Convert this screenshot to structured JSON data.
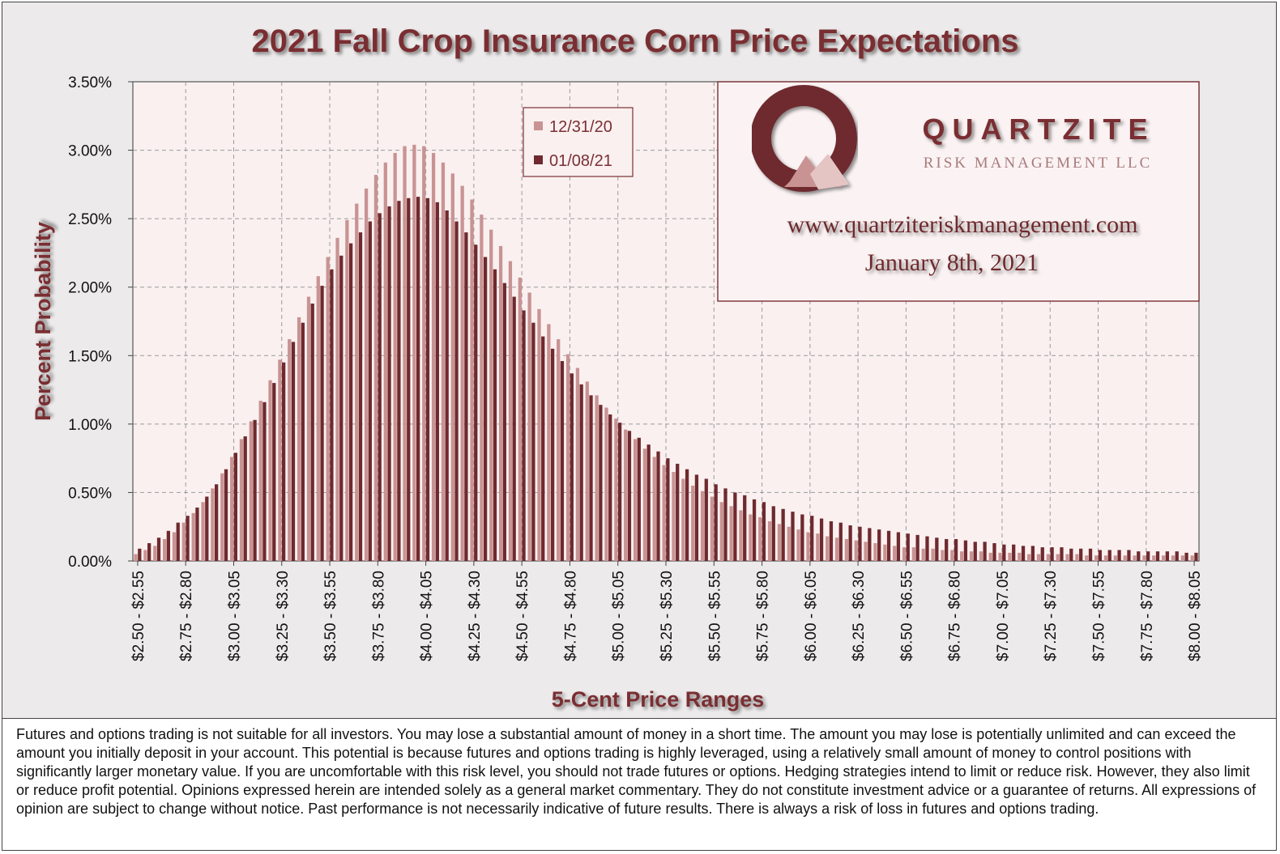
{
  "chart_data": {
    "type": "bar",
    "title": "2021 Fall Crop Insurance Corn Price Expectations",
    "xlabel": "5-Cent Price Ranges",
    "ylabel": "Percent Probability",
    "ylim": [
      0,
      3.5
    ],
    "yticks": [
      "0.00%",
      "0.50%",
      "1.00%",
      "1.50%",
      "2.00%",
      "2.50%",
      "3.00%",
      "3.50%"
    ],
    "xtick_labels": [
      "$2.50 - $2.55",
      "$2.75 - $2.80",
      "$3.00 - $3.05",
      "$3.25 - $3.30",
      "$3.50 - $3.55",
      "$3.75 - $3.80",
      "$4.00 - $4.05",
      "$4.25 - $4.30",
      "$4.50 - $4.55",
      "$4.75 - $4.80",
      "$5.00 - $5.05",
      "$5.25 - $5.30",
      "$5.50 - $5.55",
      "$5.75 - $5.80",
      "$6.00 - $6.05",
      "$6.25 - $6.30",
      "$6.50 - $6.55",
      "$6.75 - $6.80",
      "$7.00 - $7.05",
      "$7.25 - $7.30",
      "$7.50 - $7.55",
      "$7.75 - $7.80",
      "$8.00 - $8.05"
    ],
    "categories": [
      "$2.50 - $2.55",
      "$2.55 - $2.60",
      "$2.60 - $2.65",
      "$2.65 - $2.70",
      "$2.70 - $2.75",
      "$2.75 - $2.80",
      "$2.80 - $2.85",
      "$2.85 - $2.90",
      "$2.90 - $2.95",
      "$2.95 - $3.00",
      "$3.00 - $3.05",
      "$3.05 - $3.10",
      "$3.10 - $3.15",
      "$3.15 - $3.20",
      "$3.20 - $3.25",
      "$3.25 - $3.30",
      "$3.30 - $3.35",
      "$3.35 - $3.40",
      "$3.40 - $3.45",
      "$3.45 - $3.50",
      "$3.50 - $3.55",
      "$3.55 - $3.60",
      "$3.60 - $3.65",
      "$3.65 - $3.70",
      "$3.70 - $3.75",
      "$3.75 - $3.80",
      "$3.80 - $3.85",
      "$3.85 - $3.90",
      "$3.90 - $3.95",
      "$3.95 - $4.00",
      "$4.00 - $4.05",
      "$4.05 - $4.10",
      "$4.10 - $4.15",
      "$4.15 - $4.20",
      "$4.20 - $4.25",
      "$4.25 - $4.30",
      "$4.30 - $4.35",
      "$4.35 - $4.40",
      "$4.40 - $4.45",
      "$4.45 - $4.50",
      "$4.50 - $4.55",
      "$4.55 - $4.60",
      "$4.60 - $4.65",
      "$4.65 - $4.70",
      "$4.70 - $4.75",
      "$4.75 - $4.80",
      "$4.80 - $4.85",
      "$4.85 - $4.90",
      "$4.90 - $4.95",
      "$4.95 - $5.00",
      "$5.00 - $5.05",
      "$5.05 - $5.10",
      "$5.10 - $5.15",
      "$5.15 - $5.20",
      "$5.20 - $5.25",
      "$5.25 - $5.30",
      "$5.30 - $5.35",
      "$5.35 - $5.40",
      "$5.40 - $5.45",
      "$5.45 - $5.50",
      "$5.50 - $5.55",
      "$5.55 - $5.60",
      "$5.60 - $5.65",
      "$5.65 - $5.70",
      "$5.70 - $5.75",
      "$5.75 - $5.80",
      "$5.80 - $5.85",
      "$5.85 - $5.90",
      "$5.90 - $5.95",
      "$5.95 - $6.00",
      "$6.00 - $6.05",
      "$6.05 - $6.10",
      "$6.10 - $6.15",
      "$6.15 - $6.20",
      "$6.20 - $6.25",
      "$6.25 - $6.30",
      "$6.30 - $6.35",
      "$6.35 - $6.40",
      "$6.40 - $6.45",
      "$6.45 - $6.50",
      "$6.50 - $6.55",
      "$6.55 - $6.60",
      "$6.60 - $6.65",
      "$6.65 - $6.70",
      "$6.70 - $6.75",
      "$6.75 - $6.80",
      "$6.80 - $6.85",
      "$6.85 - $6.90",
      "$6.90 - $6.95",
      "$6.95 - $7.00",
      "$7.00 - $7.05",
      "$7.05 - $7.10",
      "$7.10 - $7.15",
      "$7.15 - $7.20",
      "$7.20 - $7.25",
      "$7.25 - $7.30",
      "$7.30 - $7.35",
      "$7.35 - $7.40",
      "$7.40 - $7.45",
      "$7.45 - $7.50",
      "$7.50 - $7.55",
      "$7.55 - $7.60",
      "$7.60 - $7.65",
      "$7.65 - $7.70",
      "$7.70 - $7.75",
      "$7.75 - $7.80",
      "$7.80 - $7.85",
      "$7.85 - $7.90",
      "$7.90 - $7.95",
      "$7.95 - $8.00",
      "$8.00 - $8.05"
    ],
    "series": [
      {
        "name": "12/31/20",
        "color": "#c99393",
        "values": [
          0.05,
          0.08,
          0.11,
          0.16,
          0.21,
          0.28,
          0.35,
          0.43,
          0.53,
          0.64,
          0.76,
          0.89,
          1.02,
          1.17,
          1.32,
          1.47,
          1.62,
          1.78,
          1.93,
          2.08,
          2.22,
          2.36,
          2.49,
          2.61,
          2.72,
          2.82,
          2.91,
          2.98,
          3.03,
          3.04,
          3.03,
          2.98,
          2.91,
          2.83,
          2.74,
          2.64,
          2.53,
          2.42,
          2.3,
          2.19,
          2.07,
          1.96,
          1.84,
          1.73,
          1.62,
          1.51,
          1.41,
          1.31,
          1.21,
          1.12,
          1.04,
          0.96,
          0.89,
          0.82,
          0.76,
          0.7,
          0.65,
          0.6,
          0.55,
          0.51,
          0.47,
          0.43,
          0.4,
          0.37,
          0.34,
          0.32,
          0.29,
          0.27,
          0.25,
          0.23,
          0.21,
          0.2,
          0.18,
          0.17,
          0.16,
          0.15,
          0.14,
          0.13,
          0.12,
          0.11,
          0.1,
          0.1,
          0.09,
          0.09,
          0.08,
          0.08,
          0.07,
          0.07,
          0.07,
          0.06,
          0.06,
          0.06,
          0.06,
          0.05,
          0.05,
          0.05,
          0.05,
          0.05,
          0.05,
          0.04,
          0.04,
          0.04,
          0.04,
          0.04,
          0.04,
          0.04,
          0.04,
          0.04,
          0.04,
          0.04,
          0.04
        ]
      },
      {
        "name": "01/08/21",
        "color": "#6e2a2e",
        "values": [
          0.09,
          0.13,
          0.17,
          0.22,
          0.28,
          0.33,
          0.39,
          0.47,
          0.56,
          0.67,
          0.79,
          0.91,
          1.03,
          1.16,
          1.3,
          1.45,
          1.6,
          1.74,
          1.88,
          2.01,
          2.13,
          2.23,
          2.32,
          2.4,
          2.48,
          2.54,
          2.59,
          2.63,
          2.65,
          2.66,
          2.65,
          2.62,
          2.56,
          2.48,
          2.4,
          2.31,
          2.22,
          2.13,
          2.03,
          1.93,
          1.83,
          1.74,
          1.64,
          1.55,
          1.46,
          1.37,
          1.29,
          1.21,
          1.14,
          1.07,
          1.01,
          0.95,
          0.9,
          0.85,
          0.8,
          0.75,
          0.71,
          0.67,
          0.63,
          0.6,
          0.56,
          0.53,
          0.5,
          0.48,
          0.45,
          0.43,
          0.4,
          0.38,
          0.36,
          0.34,
          0.33,
          0.31,
          0.29,
          0.28,
          0.26,
          0.25,
          0.24,
          0.23,
          0.22,
          0.21,
          0.2,
          0.19,
          0.18,
          0.17,
          0.16,
          0.16,
          0.15,
          0.14,
          0.14,
          0.13,
          0.12,
          0.12,
          0.11,
          0.11,
          0.1,
          0.1,
          0.1,
          0.09,
          0.09,
          0.09,
          0.08,
          0.08,
          0.08,
          0.08,
          0.07,
          0.07,
          0.07,
          0.07,
          0.07,
          0.06,
          0.06
        ]
      }
    ]
  },
  "legend": {
    "items": [
      {
        "label": "12/31/20",
        "color": "#c99393"
      },
      {
        "label": "01/08/21",
        "color": "#6e2a2e"
      }
    ]
  },
  "brand": {
    "name": "QUARTZITE",
    "subtitle": "RISK MANAGEMENT LLC",
    "website": "www.quartziteriskmanagement.com",
    "date": "January 8th, 2021",
    "logo_icon": "quartzite-q-logo-icon",
    "brand_color": "#6e2a2e"
  },
  "disclaimer": {
    "text": "Futures and options trading is not suitable for all investors. You may lose a substantial amount of money in a short time. The amount you may lose is potentially unlimited and can exceed the amount you initially deposit in your account. This potential is because futures and options trading is highly leveraged, using a relatively small amount of money to control positions with significantly larger monetary value. If you are uncomfortable with this risk level, you should not trade futures or options. Hedging strategies intend to limit or reduce risk. However, they also limit or reduce profit potential. Opinions expressed herein are intended solely as a general market commentary. They do not constitute investment advice or a guarantee of returns. All expressions of opinion are subject to change without notice. Past performance is not necessarily indicative of future results. There is always a risk of loss in futures and options trading."
  }
}
